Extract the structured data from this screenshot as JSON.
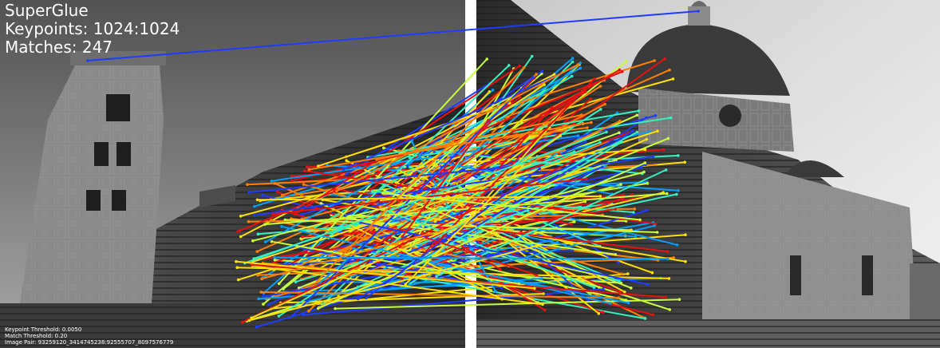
{
  "title": "SuperGlue",
  "keypoints_label": "Keypoints: 1024:1024",
  "matches_label": "Matches: 247",
  "footer": {
    "keypoint_threshold": "Keypoint Threshold: 0.0050",
    "match_threshold": "Match Threshold: 0.20",
    "image_pair": "Image Pair: 93259120_3414745238:92555707_8097576779"
  },
  "images": {
    "left": "grayscale-photo-bell-tower-and-cathedral-facade",
    "right": "grayscale-photo-cathedral-dome"
  },
  "match_colormap": [
    "#1e3cff",
    "#00a0ff",
    "#35f0c0",
    "#c8ff3c",
    "#ffe000",
    "#ff8000",
    "#e81010"
  ]
}
